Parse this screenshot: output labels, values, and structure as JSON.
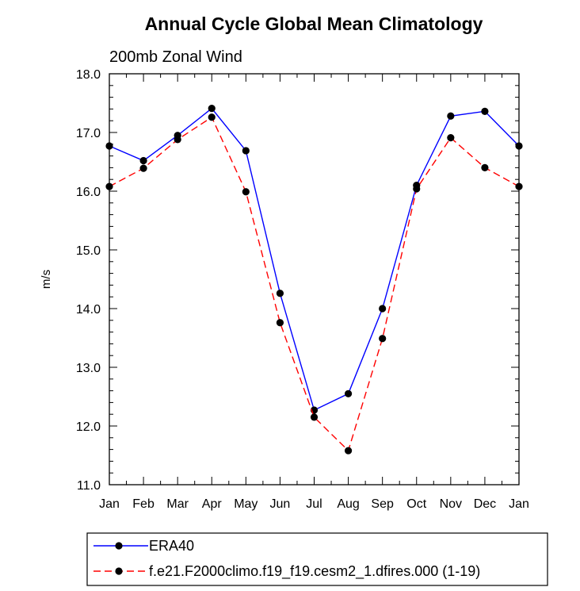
{
  "chart_data": {
    "type": "line",
    "title": "Annual Cycle Global Mean Climatology",
    "subtitle": "200mb Zonal Wind",
    "xlabel": "",
    "ylabel": "m/s",
    "categories": [
      "Jan",
      "Feb",
      "Mar",
      "Apr",
      "May",
      "Jun",
      "Jul",
      "Aug",
      "Sep",
      "Oct",
      "Nov",
      "Dec",
      "Jan"
    ],
    "ylim": [
      11.0,
      18.0
    ],
    "yticks": [
      "11.0",
      "12.0",
      "13.0",
      "14.0",
      "15.0",
      "16.0",
      "17.0",
      "18.0"
    ],
    "grid": false,
    "legend_position": "bottom",
    "series": [
      {
        "name": "ERA40",
        "color": "#0000ff",
        "dash": "solid",
        "marker": "filled-circle",
        "values": [
          16.77,
          16.52,
          16.95,
          17.41,
          16.69,
          14.26,
          12.27,
          12.55,
          14.0,
          16.1,
          17.28,
          17.36,
          16.77
        ]
      },
      {
        "name": "f.e21.F2000climo.f19_f19.cesm2_1.dfires.000 (1-19)",
        "color": "#ff0000",
        "dash": "dashed",
        "marker": "filled-circle",
        "values": [
          16.08,
          16.39,
          16.88,
          17.26,
          15.99,
          13.76,
          12.15,
          11.58,
          13.49,
          16.04,
          16.91,
          16.4,
          16.08
        ]
      }
    ]
  }
}
